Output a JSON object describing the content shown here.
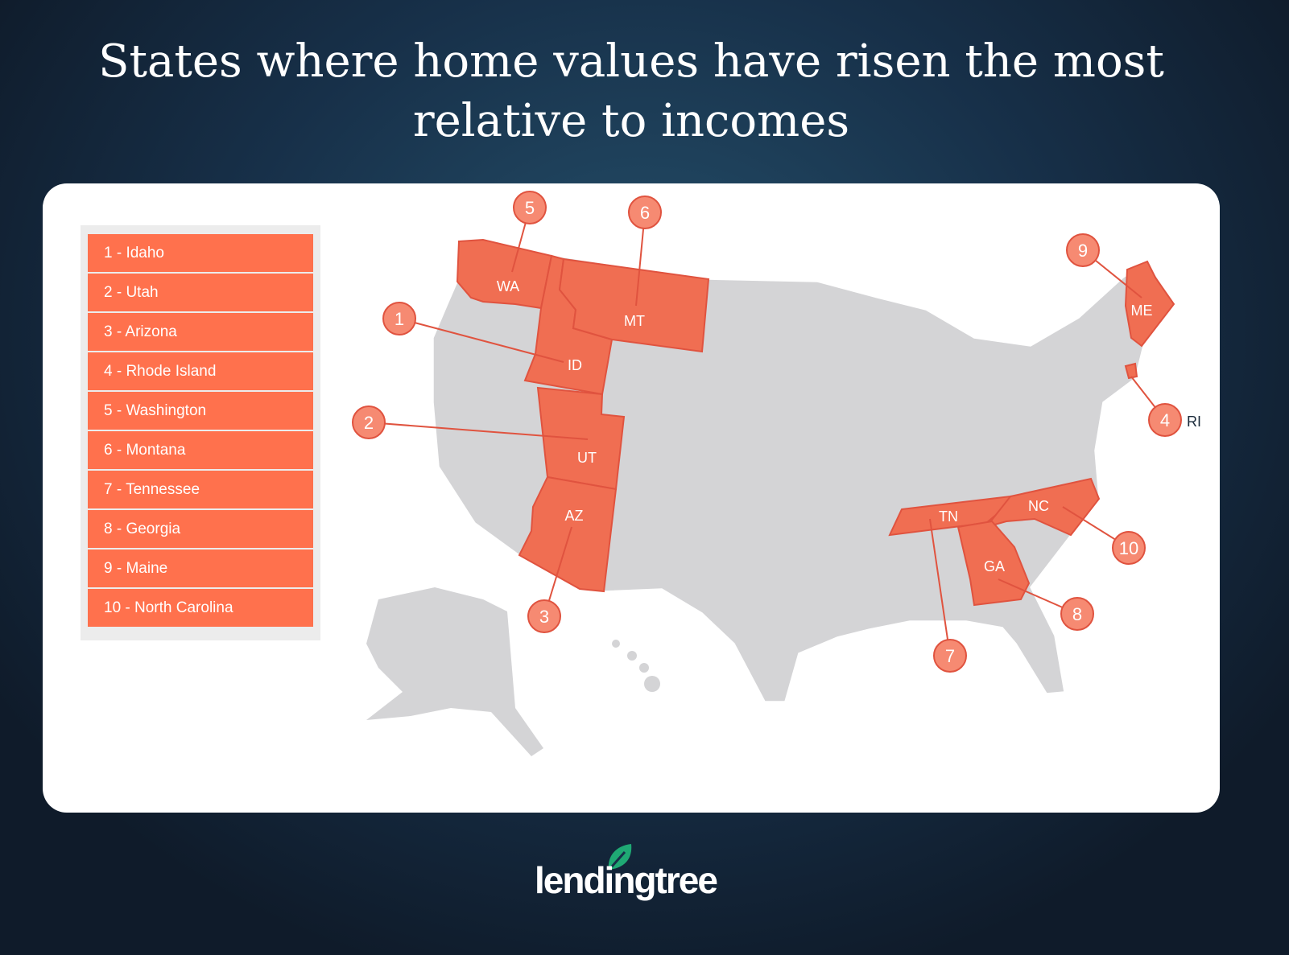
{
  "title_line1": "States where home values have risen the most",
  "title_line2": "relative to incomes",
  "legend": [
    "1 - Idaho",
    "2 - Utah",
    "3 - Arizona",
    "4 - Rhode Island",
    "5 - Washington",
    "6 - Montana",
    "7 - Tennessee",
    "8 - Georgia",
    "9 - Maine",
    "10 - North Carolina"
  ],
  "markers": [
    {
      "rank": "1",
      "state": "ID"
    },
    {
      "rank": "2",
      "state": "UT"
    },
    {
      "rank": "3",
      "state": "AZ"
    },
    {
      "rank": "4",
      "state": "RI"
    },
    {
      "rank": "5",
      "state": "WA"
    },
    {
      "rank": "6",
      "state": "MT"
    },
    {
      "rank": "7",
      "state": "TN"
    },
    {
      "rank": "8",
      "state": "GA"
    },
    {
      "rank": "9",
      "state": "ME"
    },
    {
      "rank": "10",
      "state": "NC"
    }
  ],
  "colors": {
    "highlight": "#f06e52",
    "marker_fill": "#f68a72",
    "marker_stroke": "#e0533f",
    "other_states": "#d4d4d6",
    "legend_item": "#ff714d",
    "brand_leaf": "#1fa974"
  },
  "logo": "lendingtree"
}
